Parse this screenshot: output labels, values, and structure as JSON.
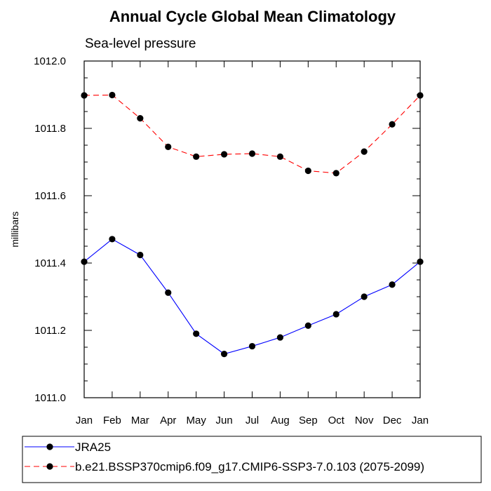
{
  "chart_data": {
    "type": "line",
    "title": "Annual Cycle Global Mean Climatology",
    "subtitle": "Sea-level pressure",
    "ylabel": "millibars",
    "xlabel": "",
    "categories": [
      "Jan",
      "Feb",
      "Mar",
      "Apr",
      "May",
      "Jun",
      "Jul",
      "Aug",
      "Sep",
      "Oct",
      "Nov",
      "Dec",
      "Jan"
    ],
    "ylim": [
      1011.0,
      1012.0
    ],
    "yticks": [
      "1011.0",
      "1011.2",
      "1011.4",
      "1011.6",
      "1011.8",
      "1012.0"
    ],
    "ytick_values": [
      1011.0,
      1011.2,
      1011.4,
      1011.6,
      1011.8,
      1012.0
    ],
    "yminor_step": 0.05,
    "series": [
      {
        "name": "JRA25",
        "color": "#0000ff",
        "dash": "solid",
        "values": [
          1011.404,
          1011.471,
          1011.424,
          1011.312,
          1011.19,
          1011.13,
          1011.153,
          1011.179,
          1011.214,
          1011.248,
          1011.3,
          1011.336,
          1011.404
        ]
      },
      {
        "name": "b.e21.BSSP370cmip6.f09_g17.CMIP6-SSP3-7.0.103 (2075-2099)",
        "color": "#ff0000",
        "dash": "dashed",
        "values": [
          1011.898,
          1011.899,
          1011.83,
          1011.745,
          1011.716,
          1011.723,
          1011.725,
          1011.716,
          1011.674,
          1011.667,
          1011.731,
          1011.812,
          1011.898
        ]
      }
    ],
    "legend": "bottom"
  }
}
